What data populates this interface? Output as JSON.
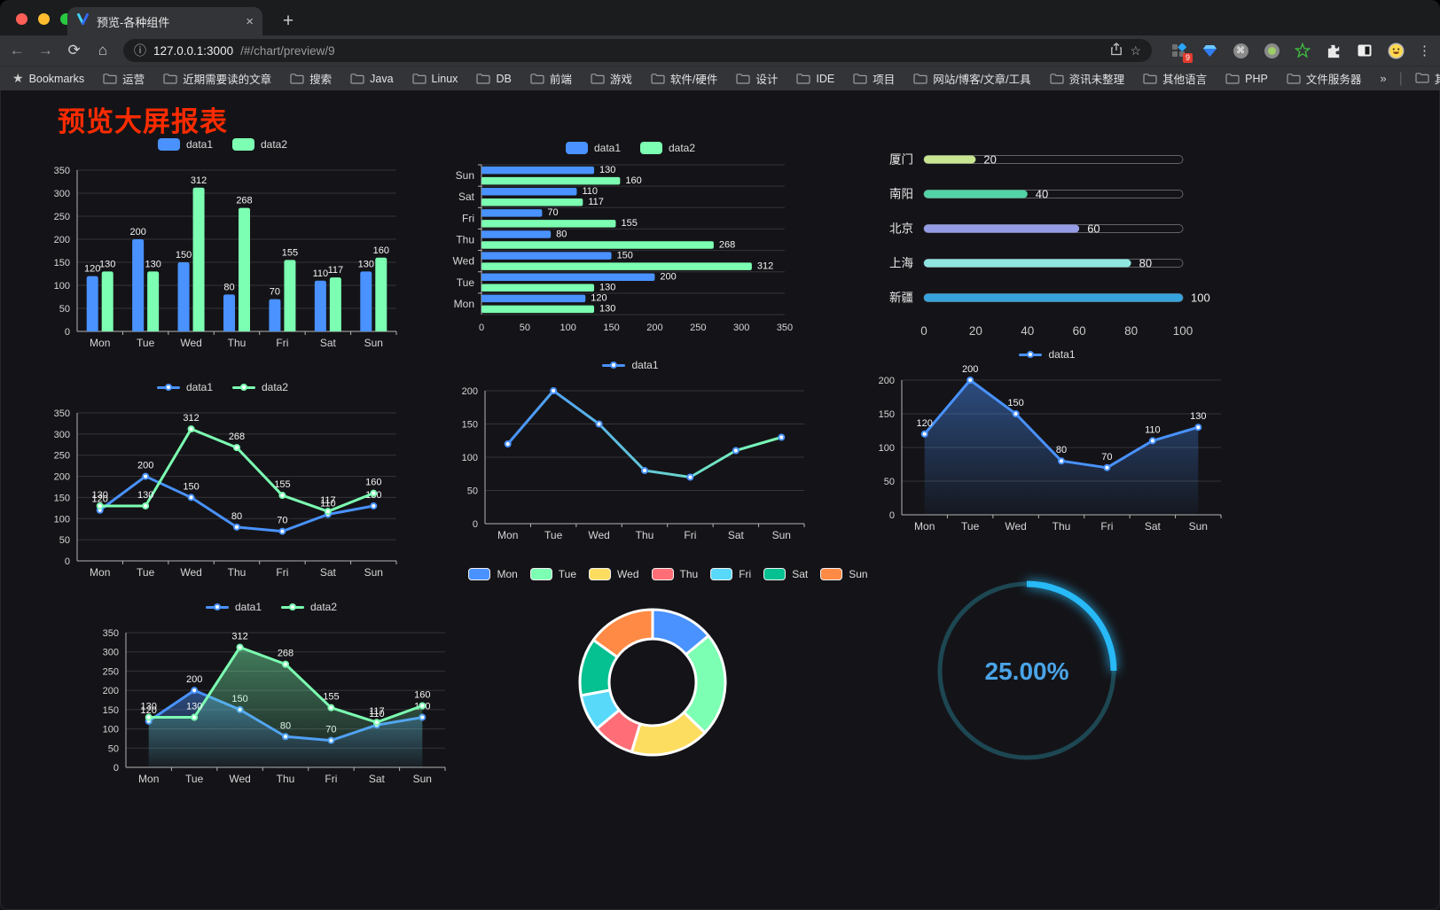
{
  "browser": {
    "tab": {
      "title": "预览-各种组件",
      "close": "×",
      "new_tab": "+"
    },
    "nav": {
      "back": "←",
      "forward": "→",
      "reload": "⟳",
      "home": "⌂"
    },
    "url": {
      "host": "127.0.0.1:3000",
      "path": "/#/chart/preview/9"
    },
    "extension_badge": "9",
    "menu_dots": "⋮",
    "bookmarks_label": "Bookmarks",
    "bookmarks": [
      "运营",
      "近期需要读的文章",
      "搜索",
      "Java",
      "Linux",
      "DB",
      "前端",
      "游戏",
      "软件/硬件",
      "设计",
      "IDE",
      "项目",
      "网站/博客/文章/工具",
      "资讯未整理",
      "其他语言",
      "PHP",
      "文件服务器"
    ],
    "bookmarks_overflow": "»",
    "other_bookmarks": "其他书签"
  },
  "page": {
    "title": "预览大屏报表",
    "title_color": "#fe2b00",
    "background": "#141418"
  },
  "chart_data": [
    {
      "id": "c-bar1",
      "type": "bar",
      "legend_style": "rect",
      "categories": [
        "Mon",
        "Tue",
        "Wed",
        "Thu",
        "Fri",
        "Sat",
        "Sun"
      ],
      "series": [
        {
          "name": "data1",
          "color": "#4992ff",
          "values": [
            120,
            200,
            150,
            80,
            70,
            110,
            130
          ]
        },
        {
          "name": "data2",
          "color": "#7cffb2",
          "values": [
            130,
            130,
            312,
            268,
            155,
            117,
            160
          ]
        }
      ],
      "ylim": [
        0,
        350
      ],
      "ytick": 50,
      "labels": true
    },
    {
      "id": "c-hbar",
      "type": "hbar",
      "legend_style": "rect",
      "categories": [
        "Mon",
        "Tue",
        "Wed",
        "Thu",
        "Fri",
        "Sat",
        "Sun"
      ],
      "series": [
        {
          "name": "data1",
          "color": "#4992ff",
          "values": [
            120,
            200,
            150,
            80,
            70,
            110,
            130
          ]
        },
        {
          "name": "data2",
          "color": "#7cffb2",
          "values": [
            130,
            130,
            312,
            268,
            155,
            117,
            160
          ]
        }
      ],
      "xlim": [
        0,
        350
      ],
      "xtick": 50,
      "labels": true
    },
    {
      "id": "c-prog",
      "type": "progress",
      "max": 100,
      "xticks": [
        0,
        20,
        40,
        60,
        80,
        100
      ],
      "items": [
        {
          "label": "厦门",
          "value": 20,
          "color": "#c8e690"
        },
        {
          "label": "南阳",
          "value": 40,
          "color": "#52d3a6"
        },
        {
          "label": "北京",
          "value": 60,
          "color": "#959ce5"
        },
        {
          "label": "上海",
          "value": 80,
          "color": "#8fe5e0"
        },
        {
          "label": "新疆",
          "value": 100,
          "color": "#36a3dd"
        }
      ]
    },
    {
      "id": "c-line2",
      "type": "line",
      "legend_style": "line",
      "categories": [
        "Mon",
        "Tue",
        "Wed",
        "Thu",
        "Fri",
        "Sat",
        "Sun"
      ],
      "series": [
        {
          "name": "data1",
          "color": "#4992ff",
          "values": [
            120,
            200,
            150,
            80,
            70,
            110,
            130
          ]
        },
        {
          "name": "data2",
          "color": "#7cffb2",
          "values": [
            130,
            130,
            312,
            268,
            155,
            117,
            160
          ]
        }
      ],
      "ylim": [
        0,
        350
      ],
      "ytick": 50,
      "labels": true
    },
    {
      "id": "c-line1",
      "type": "line",
      "legend_style": "line",
      "stroke_gradient": [
        "#4992ff",
        "#7cffb2"
      ],
      "categories": [
        "Mon",
        "Tue",
        "Wed",
        "Thu",
        "Fri",
        "Sat",
        "Sun"
      ],
      "series": [
        {
          "name": "data1",
          "color": "#4992ff",
          "values": [
            120,
            200,
            150,
            80,
            70,
            110,
            130
          ]
        }
      ],
      "ylim": [
        0,
        200
      ],
      "ytick": 50,
      "labels": false
    },
    {
      "id": "c-area1",
      "type": "line",
      "legend_style": "line",
      "area": true,
      "categories": [
        "Mon",
        "Tue",
        "Wed",
        "Thu",
        "Fri",
        "Sat",
        "Sun"
      ],
      "series": [
        {
          "name": "data1",
          "color": "#4992ff",
          "values": [
            120,
            200,
            150,
            80,
            70,
            110,
            130
          ]
        }
      ],
      "ylim": [
        0,
        200
      ],
      "ytick": 50,
      "labels": true
    },
    {
      "id": "c-area2",
      "type": "line",
      "legend_style": "line",
      "area": true,
      "categories": [
        "Mon",
        "Tue",
        "Wed",
        "Thu",
        "Fri",
        "Sat",
        "Sun"
      ],
      "series": [
        {
          "name": "data1",
          "color": "#4992ff",
          "values": [
            120,
            200,
            150,
            80,
            70,
            110,
            130
          ]
        },
        {
          "name": "data2",
          "color": "#7cffb2",
          "values": [
            130,
            130,
            312,
            268,
            155,
            117,
            160
          ]
        }
      ],
      "ylim": [
        0,
        350
      ],
      "ytick": 50,
      "labels": true
    },
    {
      "id": "c-pie",
      "type": "donut",
      "legend_style": "chip",
      "items": [
        {
          "label": "Mon",
          "value": 120,
          "color": "#4992ff"
        },
        {
          "label": "Tue",
          "value": 200,
          "color": "#7cffb2"
        },
        {
          "label": "Wed",
          "value": 150,
          "color": "#fddd60"
        },
        {
          "label": "Thu",
          "value": 80,
          "color": "#ff6e76"
        },
        {
          "label": "Fri",
          "value": 70,
          "color": "#58d9f9"
        },
        {
          "label": "Sat",
          "value": 110,
          "color": "#05c091"
        },
        {
          "label": "Sun",
          "value": 130,
          "color": "#ff8a45"
        }
      ]
    },
    {
      "id": "c-gauge",
      "type": "gauge",
      "value": 25,
      "display": "25.00%",
      "color": "#28b9f7",
      "track": "#1d4752",
      "text_color": "#4aa4e8"
    }
  ]
}
